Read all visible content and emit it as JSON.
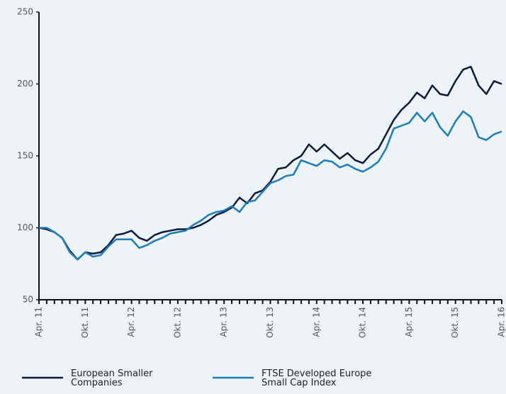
{
  "chart_data": {
    "type": "line",
    "x": [
      "Apr. 11",
      null,
      null,
      null,
      null,
      null,
      "Okt. 11",
      null,
      null,
      null,
      null,
      null,
      "Apr. 12",
      null,
      null,
      null,
      null,
      null,
      "Okt. 12",
      null,
      null,
      null,
      null,
      null,
      "Apr. 13",
      null,
      null,
      null,
      null,
      null,
      "Okt. 13",
      null,
      null,
      null,
      null,
      null,
      "Apr. 14",
      null,
      null,
      null,
      null,
      null,
      "Okt. 14",
      null,
      null,
      null,
      null,
      null,
      "Apr. 15",
      null,
      null,
      null,
      null,
      null,
      "Okt. 15",
      null,
      null,
      null,
      null,
      null,
      "Apr. 16"
    ],
    "series": [
      {
        "name": "European Smaller Companies",
        "color": "#0b1a3a",
        "values": [
          100,
          99,
          97,
          93,
          84,
          78,
          83,
          82,
          83,
          88,
          95,
          96,
          98,
          93,
          91,
          95,
          97,
          98,
          99,
          99,
          100,
          102,
          105,
          109,
          111,
          114,
          121,
          117,
          124,
          126,
          132,
          141,
          142,
          147,
          150,
          158,
          153,
          158,
          153,
          148,
          152,
          147,
          145,
          151,
          155,
          165,
          175,
          182,
          187,
          194,
          190,
          199,
          193,
          192,
          202,
          210,
          212,
          199,
          193,
          202,
          200
        ]
      },
      {
        "name": "FTSE Developed Europe Small Cap Index",
        "color": "#1a7cc1",
        "values": [
          100,
          100,
          97,
          93,
          83,
          78,
          83,
          80,
          81,
          87,
          92,
          92,
          92,
          86,
          88,
          91,
          93,
          96,
          97,
          98,
          102,
          105,
          109,
          111,
          112,
          115,
          111,
          118,
          119,
          125,
          131,
          133,
          136,
          137,
          147,
          145,
          143,
          147,
          146,
          142,
          144,
          141,
          139,
          142,
          146,
          155,
          169,
          171,
          173,
          180,
          174,
          180,
          170,
          164,
          174,
          181,
          177,
          163,
          161,
          165,
          167
        ]
      }
    ],
    "ylim": [
      50,
      250
    ],
    "yticks": [
      50,
      100,
      150,
      200,
      250
    ]
  }
}
